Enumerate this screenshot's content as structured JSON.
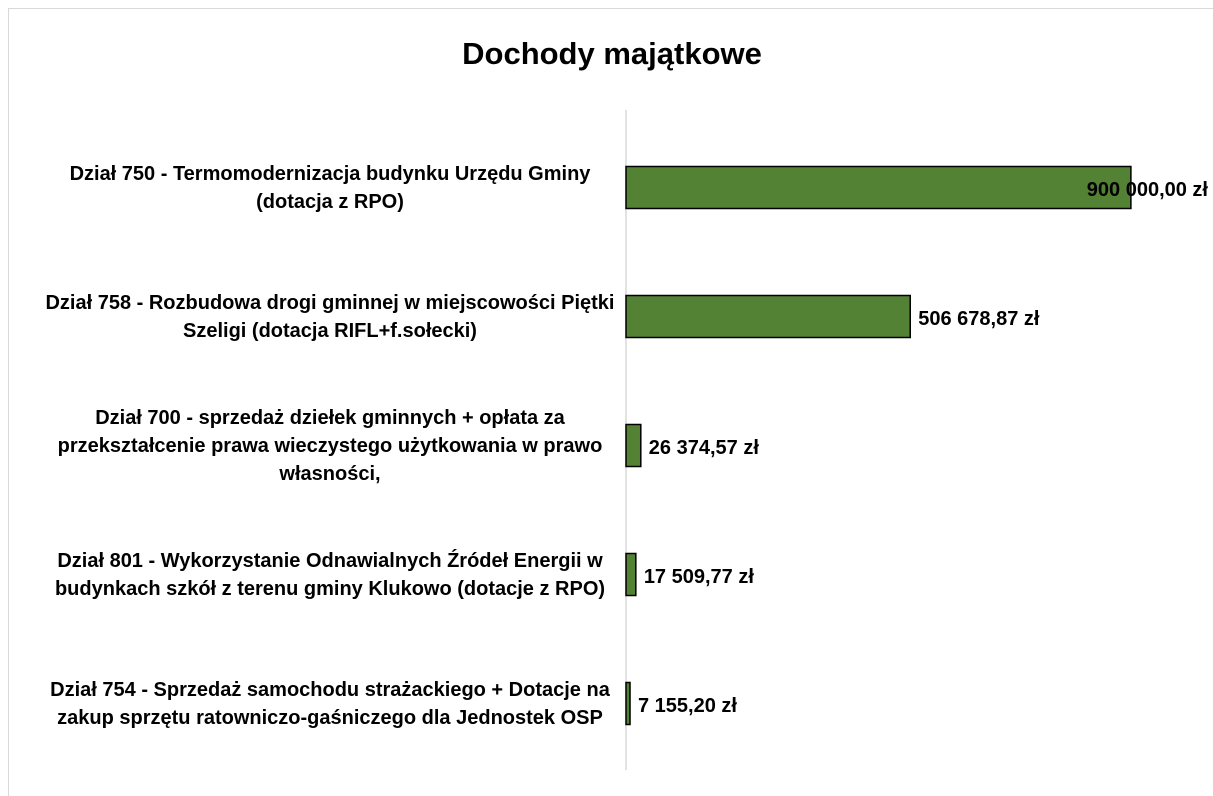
{
  "chart_data": {
    "type": "bar",
    "orientation": "horizontal",
    "title": "Dochody majątkowe",
    "categories": [
      "Dział 750 - Termomodernizacja budynku Urzędu Gminy (dotacja z RPO)",
      "Dział 758 - Rozbudowa drogi gminnej w miejscowości Piętki Szeligi (dotacja RIFL+f.sołecki)",
      "Dział 700 - sprzedaż dziełek gminnych + opłata za przekształcenie prawa wieczystego użytkowania w prawo własności,",
      "Dział 801 - Wykorzystanie Odnawialnych Źródeł Energii w budynkach szkół z terenu gminy Klukowo (dotacje z RPO)",
      "Dział 754 - Sprzedaż samochodu strażackiego + Dotacje na zakup sprzętu ratowniczo-gaśniczego dla Jednostek OSP"
    ],
    "values": [
      900000,
      506678.87,
      26374.57,
      17509.77,
      7155.2
    ],
    "value_labels": [
      "900 000,00 zł",
      "506 678,87 zł",
      "26 374,57 zł",
      "17 509,77 zł",
      "7 155,20 zł"
    ],
    "color": "#548235",
    "xlim": [
      0,
      1000000
    ]
  }
}
